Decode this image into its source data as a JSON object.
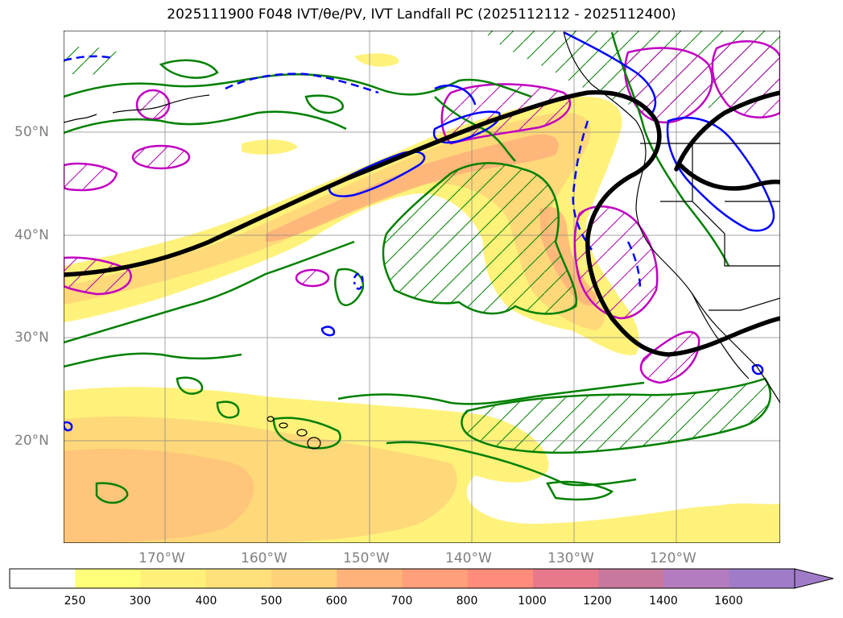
{
  "title": "2025111900 F048 IVT/θe/PV, IVT Landfall PC (2025112112 - 2025112400)",
  "map": {
    "projection": "mercator",
    "extent": {
      "lon_min": -180,
      "lon_max": -110,
      "lat_min": 10,
      "lat_max": 60
    },
    "gridlines": true,
    "lat_ticks": [
      {
        "value": 50,
        "label": "50°N"
      },
      {
        "value": 40,
        "label": "40°N"
      },
      {
        "value": 30,
        "label": "30°N"
      },
      {
        "value": 20,
        "label": "20°N"
      }
    ],
    "lon_ticks": [
      {
        "value": -170,
        "label": "170°W"
      },
      {
        "value": -160,
        "label": "160°W"
      },
      {
        "value": -150,
        "label": "150°W"
      },
      {
        "value": -140,
        "label": "140°W"
      },
      {
        "value": -130,
        "label": "130°W"
      },
      {
        "value": -120,
        "label": "120°W"
      }
    ]
  },
  "colorbar": {
    "levels": [
      "250",
      "300",
      "400",
      "500",
      "600",
      "700",
      "800",
      "1000",
      "1200",
      "1400",
      "1600"
    ],
    "colors": [
      "#ffffff",
      "#ffff7a",
      "#fff07a",
      "#ffe07a",
      "#ffd27a",
      "#ffb27a",
      "#ffa07a",
      "#ff8c7a",
      "#e8788c",
      "#c8789c",
      "#b47cc0",
      "#a07cc8"
    ],
    "extend": "max"
  },
  "colors": {
    "ivt_light": "#ffff80",
    "ivt_mid": "#ffd27a",
    "ivt_high": "#ffa87a",
    "thetae_contour": "#008000",
    "pv_contour": "#0000ff",
    "pc_contour": "#c000c0",
    "jet_contour": "#000000",
    "coastline": "#000000"
  }
}
